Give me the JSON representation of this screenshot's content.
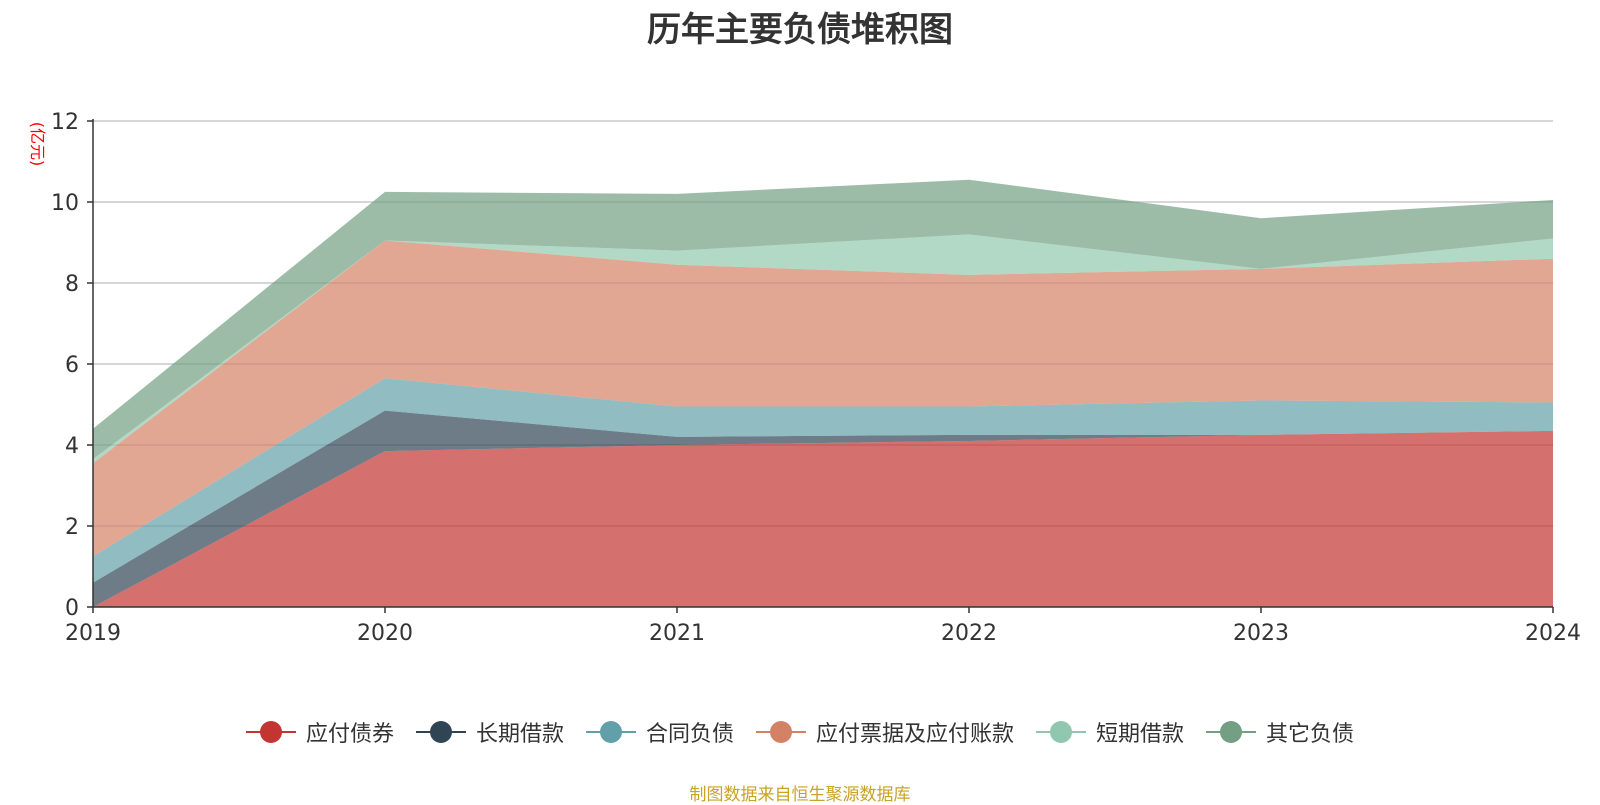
{
  "chart_data": {
    "type": "area",
    "stacked": true,
    "title": "历年主要负债堆积图",
    "ylabel": "(亿元)",
    "xlabel": "",
    "ylim": [
      0,
      12
    ],
    "yticks": [
      0,
      2,
      4,
      6,
      8,
      10,
      12
    ],
    "categories": [
      "2019",
      "2020",
      "2021",
      "2022",
      "2023",
      "2024"
    ],
    "legend_position": "bottom-center",
    "series": [
      {
        "name": "应付债券",
        "color": "#c23531",
        "values": [
          0.0,
          3.85,
          4.0,
          4.1,
          4.25,
          4.35
        ]
      },
      {
        "name": "长期借款",
        "color": "#2f4554",
        "values": [
          0.6,
          1.0,
          0.2,
          0.15,
          0.0,
          0.0
        ]
      },
      {
        "name": "合同负债",
        "color": "#61a0a8",
        "values": [
          0.65,
          0.8,
          0.75,
          0.7,
          0.85,
          0.7
        ]
      },
      {
        "name": "应付票据及应付账款",
        "color": "#d48265",
        "values": [
          2.3,
          3.4,
          3.5,
          3.25,
          3.25,
          3.55
        ]
      },
      {
        "name": "短期借款",
        "color": "#91c7ae",
        "values": [
          0.1,
          0.0,
          0.35,
          1.0,
          0.0,
          0.5
        ]
      },
      {
        "name": "其它负债",
        "color": "#749f83",
        "values": [
          0.75,
          1.2,
          1.4,
          1.35,
          1.25,
          0.95
        ]
      }
    ]
  },
  "source_text": "制图数据来自恒生聚源数据库"
}
